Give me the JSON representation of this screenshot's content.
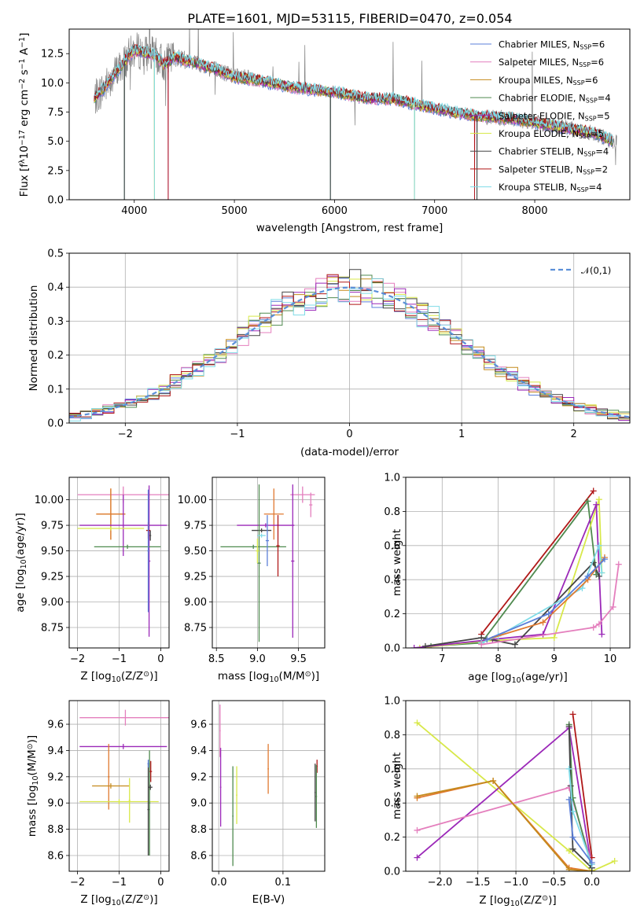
{
  "page_title": "PLATE=1601, MJD=53115, FIBERID=0470, z=0.054",
  "models": [
    {
      "name": "Chabrier MILES, N",
      "sub": "SSP",
      "suffix": "=6",
      "color": "#5b7fd8"
    },
    {
      "name": "Salpeter MILES, N",
      "sub": "SSP",
      "suffix": "=6",
      "color": "#e47fbd"
    },
    {
      "name": "Kroupa MILES, N",
      "sub": "SSP",
      "suffix": "=6",
      "color": "#c48a1c"
    },
    {
      "name": "Chabrier ELODIE, N",
      "sub": "SSP",
      "suffix": "=4",
      "color": "#4f8a4f"
    },
    {
      "name": "Salpeter ELODIE, N",
      "sub": "SSP",
      "suffix": "=5",
      "color": "#9b28b8"
    },
    {
      "name": "Kroupa ELODIE, N",
      "sub": "SSP",
      "suffix": "=5",
      "color": "#d8e84a"
    },
    {
      "name": "Chabrier STELIB, N",
      "sub": "SSP",
      "suffix": "=4",
      "color": "#444444"
    },
    {
      "name": "Salpeter STELIB, N",
      "sub": "SSP",
      "suffix": "=2",
      "color": "#b01818"
    },
    {
      "name": "Kroupa STELIB, N",
      "sub": "SSP",
      "suffix": "=4",
      "color": "#7fdce8"
    }
  ],
  "chart_data": [
    {
      "id": "spectrum",
      "type": "line",
      "title": "PLATE=1601, MJD=53115, FIBERID=0470, z=0.054",
      "xlabel": "wavelength [Angstrom, rest frame]",
      "ylabel": "Flux [f",
      "ylabel_parts": [
        "Flux [f",
        "λ",
        "10",
        "−17",
        " erg cm",
        "−2",
        " s",
        "−1",
        " A",
        "−1",
        "]"
      ],
      "xlim": [
        3350,
        8950
      ],
      "ylim": [
        0,
        14.6
      ],
      "xticks": [
        4000,
        5000,
        6000,
        7000,
        8000
      ],
      "yticks": [
        0.0,
        2.5,
        5.0,
        7.5,
        10.0,
        12.5
      ],
      "data_color": "#808080",
      "continuum": {
        "x": [
          3600,
          3700,
          3800,
          3900,
          4000,
          4100,
          4200,
          4300,
          4400,
          4600,
          4800,
          5000,
          5300,
          5600,
          6000,
          6300,
          6600,
          7000,
          7400,
          7800,
          8200,
          8600,
          8800
        ],
        "y": [
          8.6,
          9.6,
          10.7,
          11.8,
          12.8,
          12.6,
          12.4,
          11.6,
          12.2,
          11.7,
          11.2,
          10.5,
          10.1,
          9.6,
          9.2,
          8.7,
          8.6,
          7.8,
          7.2,
          6.9,
          6.3,
          5.7,
          4.9
        ]
      },
      "legend_position": "upper right"
    },
    {
      "id": "residuals",
      "type": "histogram",
      "xlabel": "(data-model)/error",
      "ylabel": "Normed distribution",
      "xlim": [
        -2.5,
        2.5
      ],
      "ylim": [
        0,
        0.5
      ],
      "xticks": [
        -2,
        -1,
        0,
        1,
        2
      ],
      "yticks": [
        0.0,
        0.1,
        0.2,
        0.3,
        0.4,
        0.5
      ],
      "bin_width": 0.1,
      "reference": {
        "label": "𝒩(0,1)",
        "color": "#5b8fd8",
        "dash": "6,4"
      },
      "legend_position": "upper right"
    },
    {
      "id": "age_vs_Z",
      "type": "errorbar",
      "xlabel": "Z [log",
      "xlabel_parts": [
        "Z [log",
        "10",
        "(Z/Z",
        "⊙",
        ")]"
      ],
      "ylabel": "age  [log",
      "ylabel_parts": [
        "age  [log",
        "10",
        "(age/yr)]"
      ],
      "xlim": [
        -2.2,
        0.2
      ],
      "ylim": [
        8.55,
        10.22
      ],
      "xticks": [
        -2,
        -1,
        0
      ],
      "yticks": [
        8.75,
        9.0,
        9.25,
        9.5,
        9.75,
        10.0
      ],
      "points": [
        {
          "x": -0.9,
          "xerr": 1.1,
          "y": 10.05,
          "yerr": 0.08,
          "c": "#e47fbd"
        },
        {
          "x": -1.2,
          "xerr": 0.35,
          "y": 9.86,
          "yerr": 0.25,
          "c": "#c48a1c"
        },
        {
          "x": -1.2,
          "xerr": 0.35,
          "y": 9.86,
          "yerr": 0.25,
          "c": "#e07a30"
        },
        {
          "x": -0.9,
          "xerr": 1.05,
          "y": 9.75,
          "yerr": 0.3,
          "c": "#9b28b8"
        },
        {
          "x": -1.2,
          "xerr": 0.8,
          "y": 9.72,
          "yerr": 0.02,
          "c": "#d8e84a"
        },
        {
          "x": -0.28,
          "xerr": 0.03,
          "y": 9.4,
          "yerr": 0.74,
          "c": "#9b28b8"
        },
        {
          "x": -0.25,
          "xerr": 0.02,
          "y": 9.65,
          "yerr": 0.05,
          "c": "#444444"
        },
        {
          "x": -0.8,
          "xerr": 0.8,
          "y": 9.54,
          "yerr": 0.02,
          "c": "#4f8a4f"
        },
        {
          "x": -0.3,
          "xerr": 0.05,
          "y": 9.7,
          "yerr": 0.08,
          "c": "#b01818"
        },
        {
          "x": -0.3,
          "xerr": 0.02,
          "y": 9.5,
          "yerr": 0.6,
          "c": "#5b7fd8"
        }
      ]
    },
    {
      "id": "age_vs_mass",
      "type": "errorbar",
      "xlabel": "mass [log",
      "xlabel_parts": [
        "mass [log",
        "10",
        "(M/M",
        "⊙",
        ")]"
      ],
      "xlim": [
        8.45,
        9.82
      ],
      "ylim": [
        8.55,
        10.22
      ],
      "xticks": [
        8.5,
        9.0,
        9.5
      ],
      "yticks": [
        8.75,
        9.0,
        9.25,
        9.5,
        9.75,
        10.0
      ],
      "points": [
        {
          "x": 9.55,
          "xerr": 0.15,
          "y": 10.05,
          "yerr": 0.08,
          "c": "#e47fbd"
        },
        {
          "x": 9.65,
          "xerr": 0.02,
          "y": 9.95,
          "yerr": 0.12,
          "c": "#e47fbd"
        },
        {
          "x": 9.2,
          "xerr": 0.12,
          "y": 9.86,
          "yerr": 0.25,
          "c": "#e07a30"
        },
        {
          "x": 9.1,
          "xerr": 0.35,
          "y": 9.75,
          "yerr": 0.02,
          "c": "#9b28b8"
        },
        {
          "x": 9.43,
          "xerr": 0.02,
          "y": 9.4,
          "yerr": 0.75,
          "c": "#9b28b8"
        },
        {
          "x": 9.05,
          "xerr": 0.12,
          "y": 9.7,
          "yerr": 0.02,
          "c": "#444444"
        },
        {
          "x": 8.95,
          "xerr": 0.4,
          "y": 9.54,
          "yerr": 0.02,
          "c": "#4f8a4f"
        },
        {
          "x": 9.02,
          "xerr": 0.02,
          "y": 9.38,
          "yerr": 0.77,
          "c": "#4f8a4f"
        },
        {
          "x": 9.25,
          "xerr": 0.02,
          "y": 9.55,
          "yerr": 0.3,
          "c": "#b01818"
        },
        {
          "x": 9.12,
          "xerr": 0.02,
          "y": 9.6,
          "yerr": 0.25,
          "c": "#5b7fd8"
        },
        {
          "x": 9.05,
          "xerr": 0.05,
          "y": 9.65,
          "yerr": 0.02,
          "c": "#7fdce8"
        },
        {
          "x": 9.0,
          "xerr": 0.02,
          "y": 9.5,
          "yerr": 0.12,
          "c": "#d8e84a"
        }
      ]
    },
    {
      "id": "weight_vs_age",
      "type": "line",
      "xlabel": "age  [log",
      "xlabel_parts": [
        "age  [log",
        "10",
        "(age/yr)]"
      ],
      "ylabel": "mass weight",
      "xlim": [
        6.35,
        10.35
      ],
      "ylim": [
        0,
        1.0
      ],
      "xticks": [
        7,
        8,
        9,
        10
      ],
      "yticks": [
        0.0,
        0.2,
        0.4,
        0.6,
        0.8,
        1.0
      ],
      "series": [
        {
          "c": "#b01818",
          "x": [
            7.7,
            9.7
          ],
          "y": [
            0.08,
            0.92
          ]
        },
        {
          "c": "#4f8a4f",
          "x": [
            6.8,
            7.7,
            9.6,
            9.75
          ],
          "y": [
            0.01,
            0.03,
            0.86,
            0.43
          ]
        },
        {
          "c": "#d8e84a",
          "x": [
            6.6,
            7.7,
            9.0,
            9.8,
            9.85
          ],
          "y": [
            0.0,
            0.04,
            0.06,
            0.87,
            0.44
          ]
        },
        {
          "c": "#9b28b8",
          "x": [
            6.5,
            7.9,
            8.8,
            9.75,
            9.85
          ],
          "y": [
            0.0,
            0.05,
            0.08,
            0.84,
            0.08
          ]
        },
        {
          "c": "#444444",
          "x": [
            6.7,
            7.7,
            8.3,
            9.7,
            9.8
          ],
          "y": [
            0.01,
            0.06,
            0.02,
            0.5,
            0.42
          ]
        },
        {
          "c": "#7fdce8",
          "x": [
            7.7,
            8.0,
            9.5,
            9.8,
            9.85
          ],
          "y": [
            0.03,
            0.07,
            0.35,
            0.6,
            0.44
          ]
        },
        {
          "c": "#e07a30",
          "x": [
            7.8,
            8.8,
            9.6,
            9.9
          ],
          "y": [
            0.05,
            0.15,
            0.4,
            0.53
          ]
        },
        {
          "c": "#5b7fd8",
          "x": [
            7.8,
            8.9,
            9.6,
            9.9
          ],
          "y": [
            0.05,
            0.2,
            0.42,
            0.52
          ]
        },
        {
          "c": "#e47fbd",
          "x": [
            7.7,
            9.7,
            9.8,
            10.05,
            10.15
          ],
          "y": [
            0.02,
            0.12,
            0.14,
            0.24,
            0.49
          ]
        }
      ]
    },
    {
      "id": "mass_vs_Z",
      "type": "errorbar",
      "xlabel": "Z [log",
      "xlabel_parts": [
        "Z [log",
        "10",
        "(Z/Z",
        "⊙",
        ")]"
      ],
      "ylabel": "mass [log",
      "ylabel_parts": [
        "mass [log",
        "10",
        "(M/M",
        "⊙",
        ")]"
      ],
      "xlim": [
        -2.2,
        0.2
      ],
      "ylim": [
        8.48,
        9.78
      ],
      "xticks": [
        -2,
        -1,
        0
      ],
      "yticks": [
        8.6,
        8.8,
        9.0,
        9.2,
        9.4,
        9.6
      ],
      "points": [
        {
          "x": -0.85,
          "xerr": 1.1,
          "y": 9.65,
          "yerr": 0.06,
          "c": "#e47fbd"
        },
        {
          "x": -0.9,
          "xerr": 1.05,
          "y": 9.43,
          "yerr": 0.02,
          "c": "#9b28b8"
        },
        {
          "x": -1.25,
          "xerr": 0.02,
          "y": 9.2,
          "yerr": 0.25,
          "c": "#e07a30"
        },
        {
          "x": -1.2,
          "xerr": 0.45,
          "y": 9.13,
          "yerr": 0.02,
          "c": "#c48a1c"
        },
        {
          "x": -0.75,
          "xerr": 0.02,
          "y": 9.02,
          "yerr": 0.17,
          "c": "#d8e84a"
        },
        {
          "x": -1.0,
          "xerr": 0.95,
          "y": 9.01,
          "yerr": 0.02,
          "c": "#d8e84a"
        },
        {
          "x": -0.3,
          "xerr": 0.02,
          "y": 8.95,
          "yerr": 0.35,
          "c": "#444444"
        },
        {
          "x": -0.27,
          "xerr": 0.02,
          "y": 9.0,
          "yerr": 0.4,
          "c": "#4f8a4f"
        },
        {
          "x": -0.25,
          "xerr": 0.05,
          "y": 9.12,
          "yerr": 0.02,
          "c": "#444444"
        },
        {
          "x": -0.24,
          "xerr": 0.03,
          "y": 9.24,
          "yerr": 0.08,
          "c": "#b01818"
        },
        {
          "x": -0.3,
          "xerr": 0.02,
          "y": 9.3,
          "yerr": 0.03,
          "c": "#5b7fd8"
        }
      ]
    },
    {
      "id": "mass_vs_ebv",
      "type": "errorbar",
      "xlabel": "E(B-V)",
      "xlim": [
        -0.01,
        0.165
      ],
      "ylim": [
        8.48,
        9.78
      ],
      "xticks": [
        0.0,
        0.1
      ],
      "yticks": [
        8.6,
        8.8,
        9.0,
        9.2,
        9.4,
        9.6
      ],
      "points": [
        {
          "x": 0.002,
          "xerr": 0.001,
          "y": 9.55,
          "yerr": 0.2,
          "c": "#e47fbd"
        },
        {
          "x": 0.003,
          "xerr": 0.001,
          "y": 9.12,
          "yerr": 0.3,
          "c": "#9b28b8"
        },
        {
          "x": 0.022,
          "xerr": 0.001,
          "y": 8.9,
          "yerr": 0.38,
          "c": "#4f8a4f"
        },
        {
          "x": 0.028,
          "xerr": 0.001,
          "y": 9.06,
          "yerr": 0.22,
          "c": "#d8e84a"
        },
        {
          "x": 0.077,
          "xerr": 0.001,
          "y": 9.26,
          "yerr": 0.19,
          "c": "#e07a30"
        },
        {
          "x": 0.15,
          "xerr": 0.001,
          "y": 9.08,
          "yerr": 0.22,
          "c": "#444444"
        },
        {
          "x": 0.153,
          "xerr": 0.001,
          "y": 9.28,
          "yerr": 0.05,
          "c": "#b01818"
        },
        {
          "x": 0.152,
          "xerr": 0.001,
          "y": 9.05,
          "yerr": 0.24,
          "c": "#4f8a4f"
        }
      ]
    },
    {
      "id": "weight_vs_Z",
      "type": "line",
      "xlabel": "Z [log",
      "xlabel_parts": [
        "Z [log",
        "10",
        "(Z/Z",
        "⊙",
        ")]"
      ],
      "ylabel": "mass weight",
      "xlim": [
        -2.45,
        0.5
      ],
      "ylim": [
        0,
        1.0
      ],
      "xticks": [
        -2.0,
        -1.5,
        -1.0,
        -0.5,
        0.0
      ],
      "yticks": [
        0.0,
        0.2,
        0.4,
        0.6,
        0.8,
        1.0
      ],
      "series": [
        {
          "c": "#d8e84a",
          "x": [
            -2.3,
            -0.3,
            0.0,
            0.3
          ],
          "y": [
            0.87,
            0.12,
            0.0,
            0.06
          ]
        },
        {
          "c": "#9b28b8",
          "x": [
            -2.3,
            -0.3,
            0.0
          ],
          "y": [
            0.08,
            0.84,
            0.02
          ]
        },
        {
          "c": "#e47fbd",
          "x": [
            -2.3,
            -0.3,
            0.0
          ],
          "y": [
            0.24,
            0.49,
            0.04
          ]
        },
        {
          "c": "#e07a30",
          "x": [
            -2.3,
            -1.3,
            -0.3,
            0.0
          ],
          "y": [
            0.43,
            0.53,
            0.02,
            0.0
          ]
        },
        {
          "c": "#c48a1c",
          "x": [
            -2.3,
            -1.3,
            -0.3,
            0.0
          ],
          "y": [
            0.44,
            0.53,
            0.01,
            0.0
          ]
        },
        {
          "c": "#b01818",
          "x": [
            -0.25,
            0.0
          ],
          "y": [
            0.92,
            0.08
          ]
        },
        {
          "c": "#4f8a4f",
          "x": [
            -0.3,
            -0.25,
            0.0
          ],
          "y": [
            0.86,
            0.43,
            0.02
          ]
        },
        {
          "c": "#444444",
          "x": [
            -0.3,
            -0.28,
            -0.25,
            0.0
          ],
          "y": [
            0.85,
            0.5,
            0.13,
            0.02
          ]
        },
        {
          "c": "#7fdce8",
          "x": [
            -0.3,
            -0.25,
            0.0
          ],
          "y": [
            0.6,
            0.35,
            0.04
          ]
        },
        {
          "c": "#5b7fd8",
          "x": [
            -0.3,
            -0.25,
            0.0
          ],
          "y": [
            0.42,
            0.2,
            0.05
          ]
        }
      ]
    }
  ]
}
